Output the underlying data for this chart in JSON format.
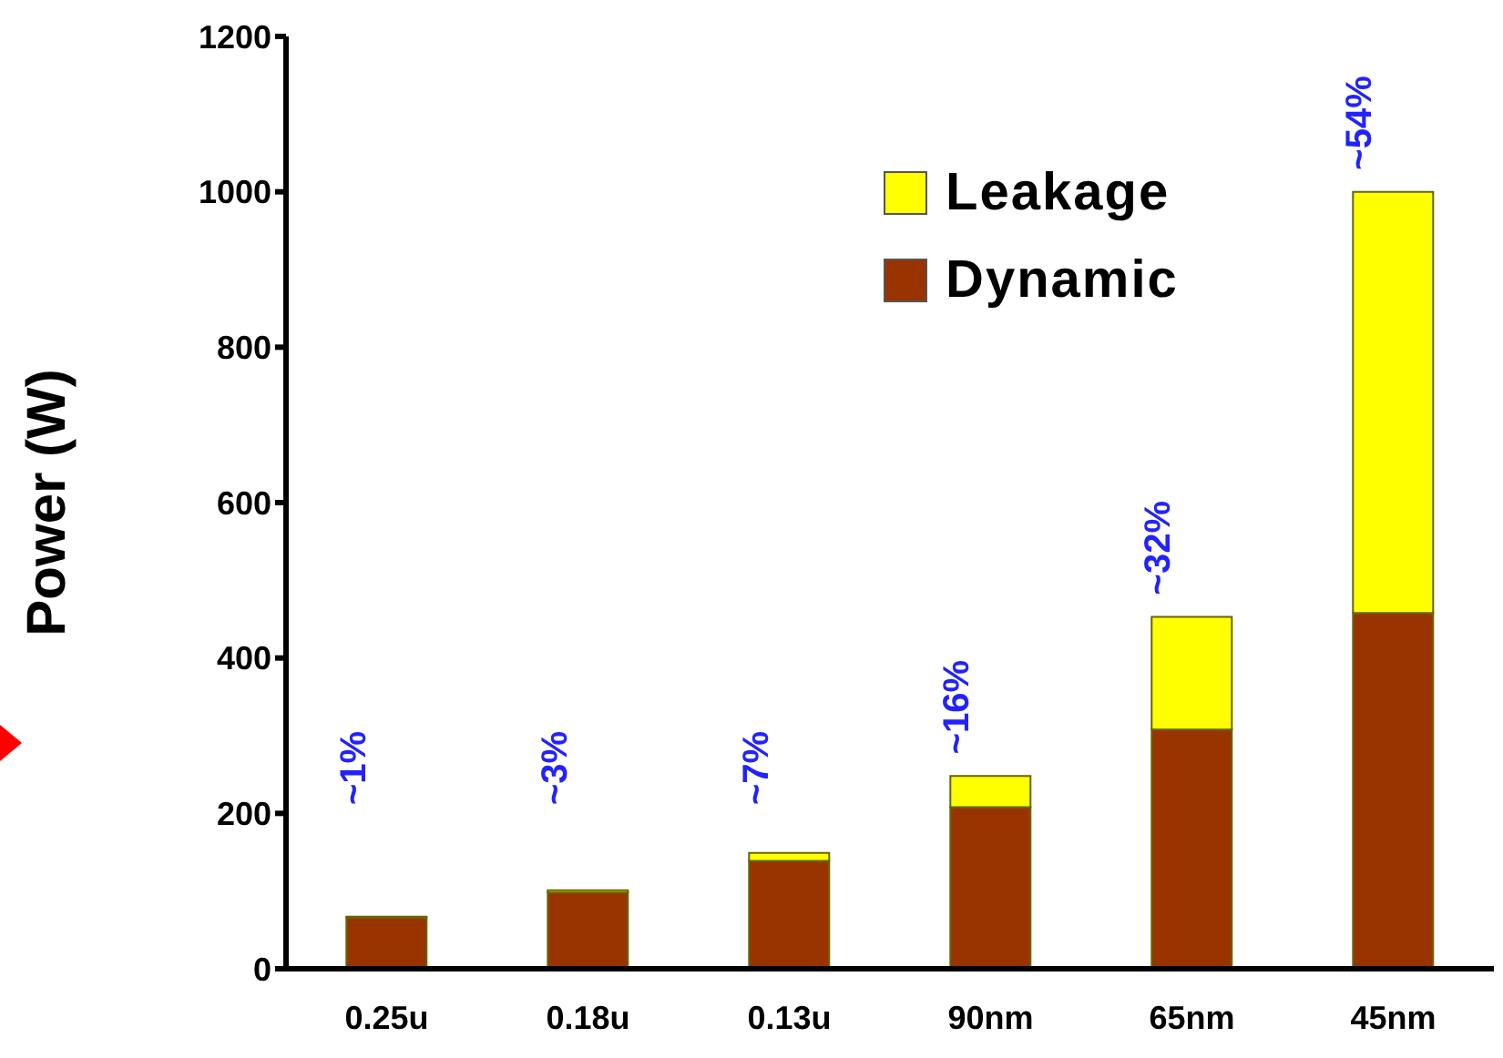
{
  "chart_data": {
    "type": "bar",
    "ylabel": "Power (W)",
    "categories": [
      "0.25u",
      "0.18u",
      "0.13u",
      "90nm",
      "65nm",
      "45nm"
    ],
    "stacked": true,
    "series": [
      {
        "name": "Dynamic",
        "color": "#993300",
        "values": [
          66,
          98,
          139,
          208,
          308,
          458
        ]
      },
      {
        "name": "Leakage",
        "color": "#ffff00",
        "values": [
          1,
          3,
          10,
          40,
          145,
          542
        ]
      }
    ],
    "ylim": [
      0,
      1200
    ],
    "yticks": [
      0,
      200,
      400,
      600,
      800,
      1000,
      1200
    ],
    "grid": false,
    "legend": "top right",
    "annotations": [
      "~1%",
      "~3%",
      "~7%",
      "~16%",
      "~32%",
      "~54%"
    ]
  }
}
